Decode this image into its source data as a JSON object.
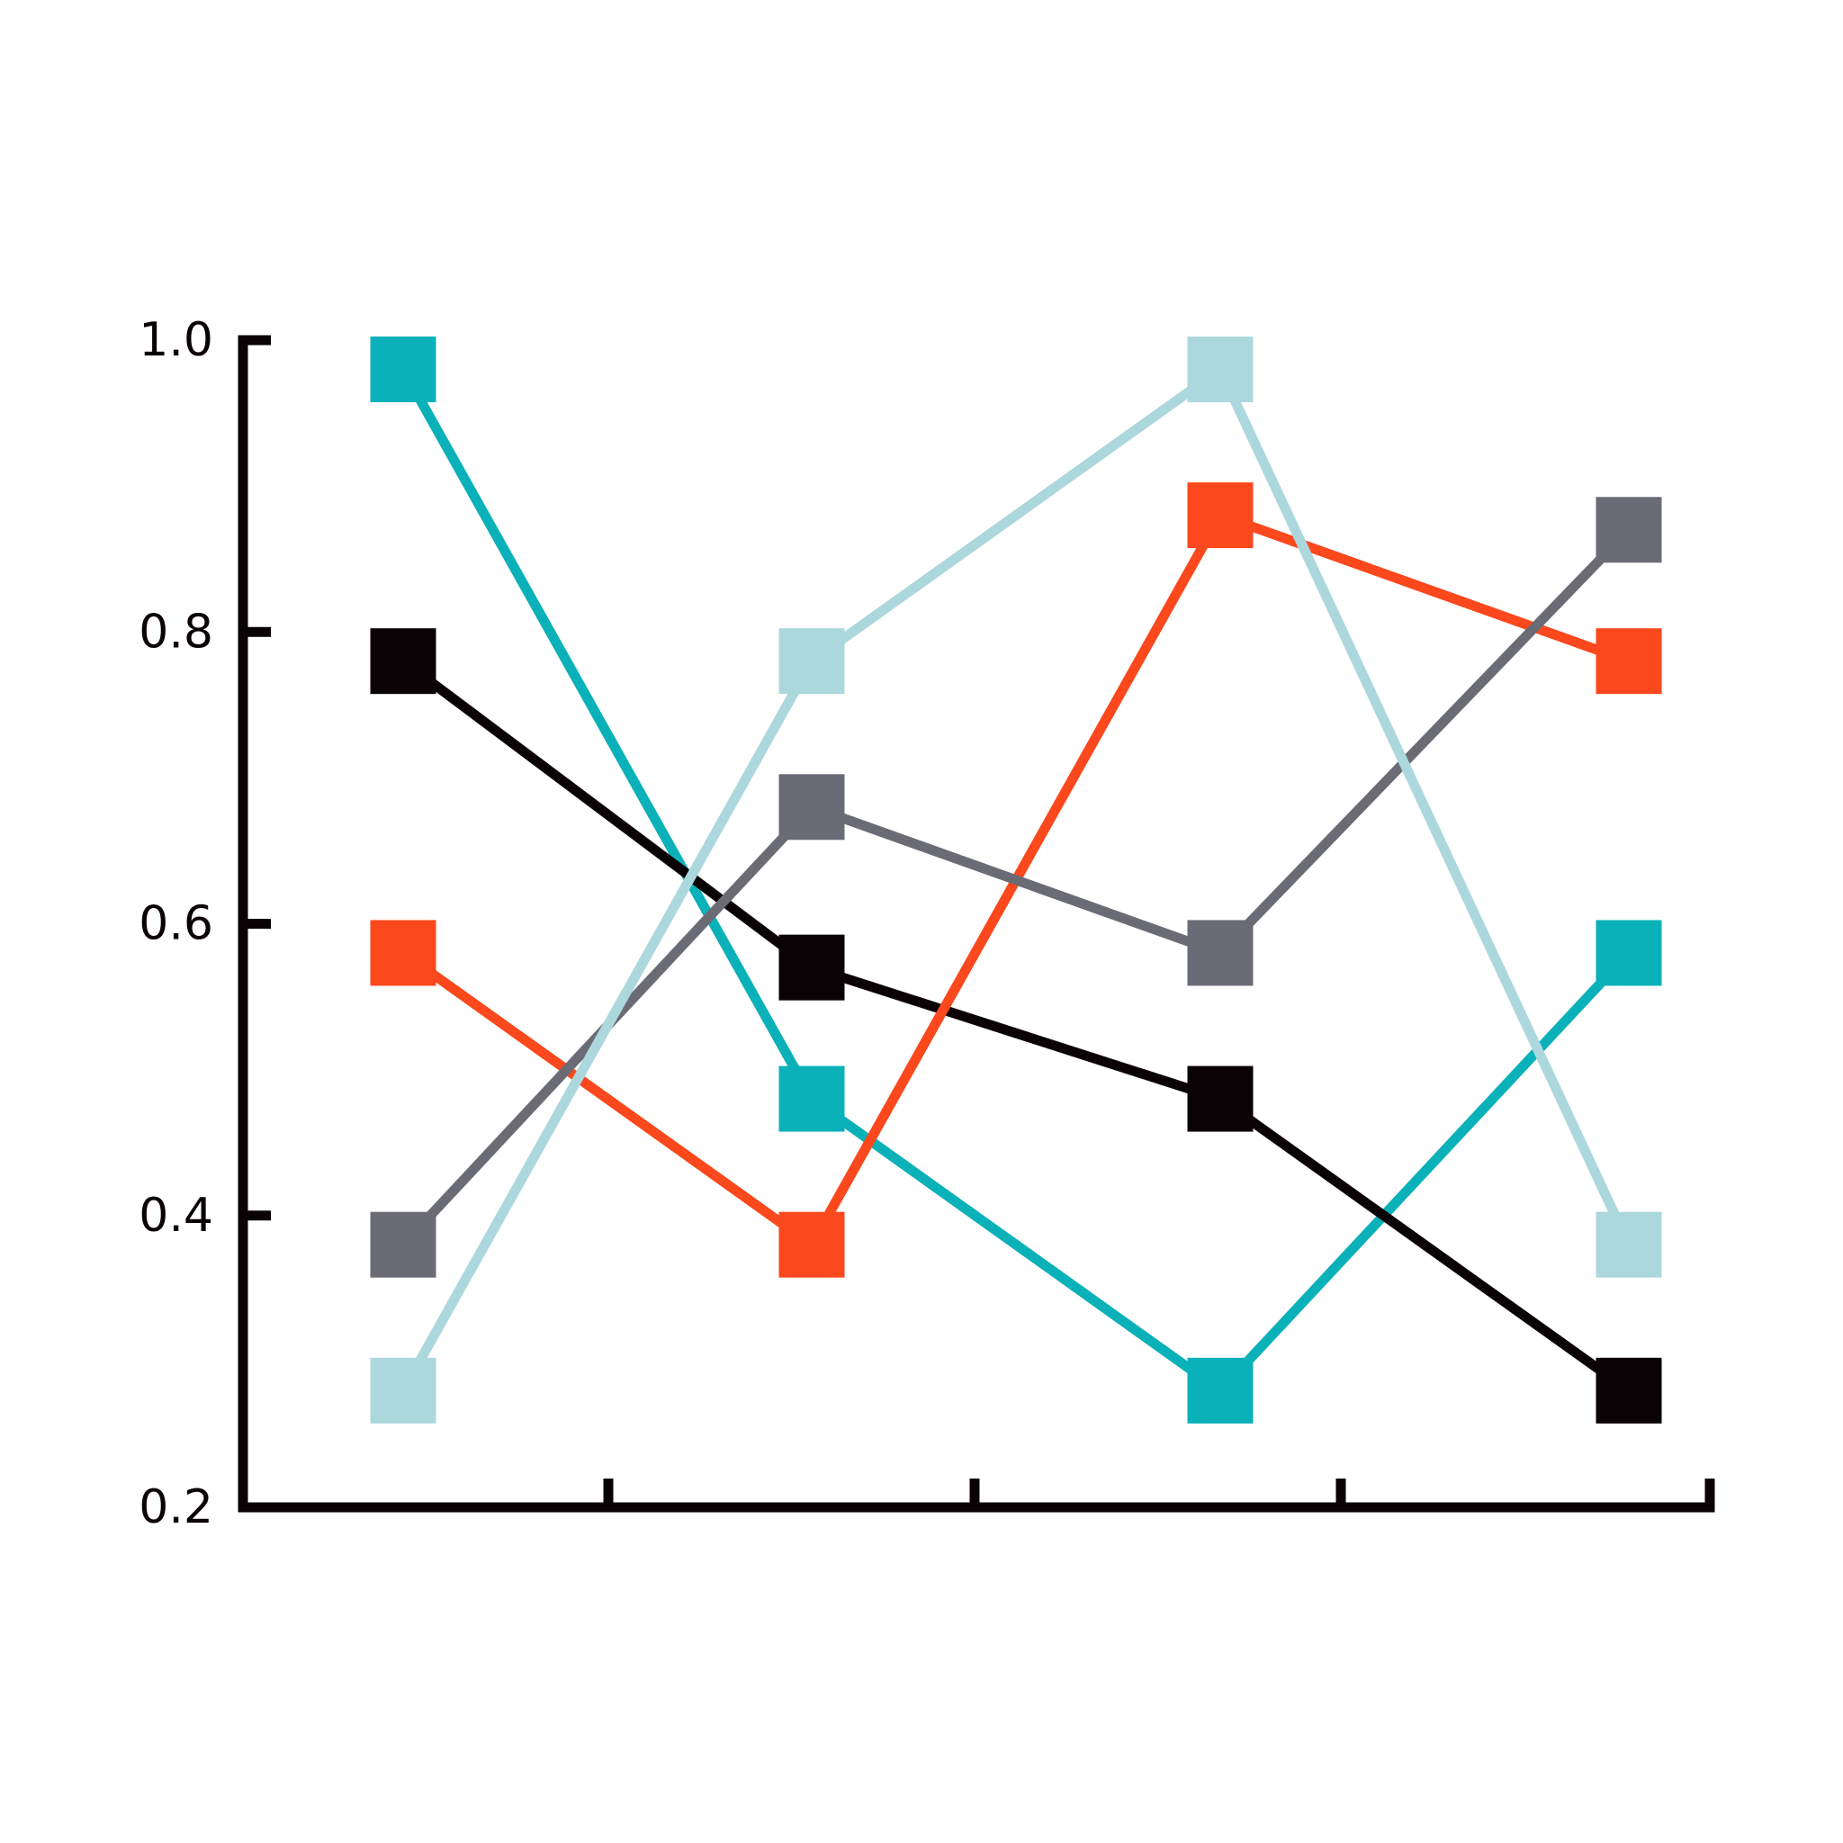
{
  "chart_data": {
    "type": "line",
    "title": "",
    "xlabel": "",
    "ylabel": "",
    "ylim": [
      0.2,
      1.0
    ],
    "yticks": [
      "0.2",
      "0.4",
      "0.6",
      "0.8",
      "1.0"
    ],
    "x": [
      1,
      2,
      3,
      4
    ],
    "grid": false,
    "legend": "none",
    "marker": "square",
    "axis_color": "#0a0305",
    "series": [
      {
        "color": "#0bb1b9",
        "values": [
          0.98,
          0.48,
          0.28,
          0.58
        ]
      },
      {
        "color": "#0a0305",
        "values": [
          0.78,
          0.57,
          0.48,
          0.28
        ]
      },
      {
        "color": "#fb481c",
        "values": [
          0.58,
          0.38,
          0.88,
          0.78
        ]
      },
      {
        "color": "#6b6b75",
        "values": [
          0.38,
          0.68,
          0.58,
          0.87
        ]
      },
      {
        "color": "#acd8dd",
        "values": [
          0.28,
          0.78,
          0.98,
          0.38
        ]
      }
    ]
  }
}
